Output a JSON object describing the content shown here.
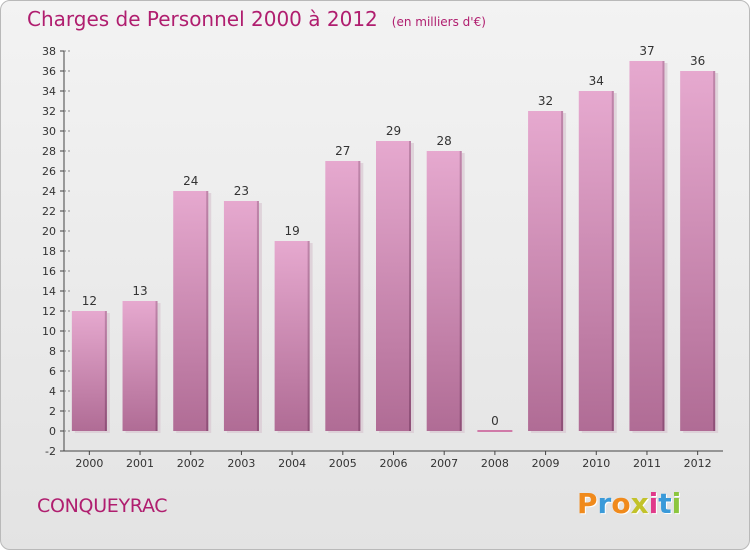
{
  "title": "Charges de Personnel 2000 à 2012",
  "subtitle": "(en milliers d'€)",
  "place": "CONQUEYRAC",
  "logo": {
    "letters": [
      "P",
      "r",
      "o",
      "x",
      "i",
      "t",
      "i"
    ],
    "colors": [
      "#f08a1c",
      "#3a9ad9",
      "#f08a1c",
      "#c2c22a",
      "#e03a8a",
      "#3a9ad9",
      "#8cc63f"
    ]
  },
  "colors": {
    "title": "#b01e6f",
    "bar_light": "#e6a9cf",
    "bar_dark": "#b06c95",
    "axis": "#444444",
    "grid_dash": "#999999"
  },
  "chart_data": {
    "type": "bar",
    "categories": [
      "2000",
      "2001",
      "2002",
      "2003",
      "2004",
      "2005",
      "2006",
      "2007",
      "2008",
      "2009",
      "2010",
      "2011",
      "2012"
    ],
    "values": [
      12,
      13,
      24,
      23,
      19,
      27,
      29,
      28,
      0,
      32,
      34,
      37,
      36
    ],
    "value_labels": [
      "12",
      "13",
      "24",
      "23",
      "19",
      "27",
      "29",
      "28",
      "0",
      "32",
      "34",
      "37",
      "36"
    ],
    "yticks": [
      "-2",
      "0",
      "2",
      "4",
      "6",
      "8",
      "10",
      "12",
      "14",
      "16",
      "18",
      "20",
      "22",
      "24",
      "26",
      "28",
      "30",
      "32",
      "34",
      "36",
      "38"
    ],
    "ylim": [
      -2,
      38
    ],
    "xlabel": "",
    "ylabel": "",
    "grid": false,
    "legend": "none"
  }
}
